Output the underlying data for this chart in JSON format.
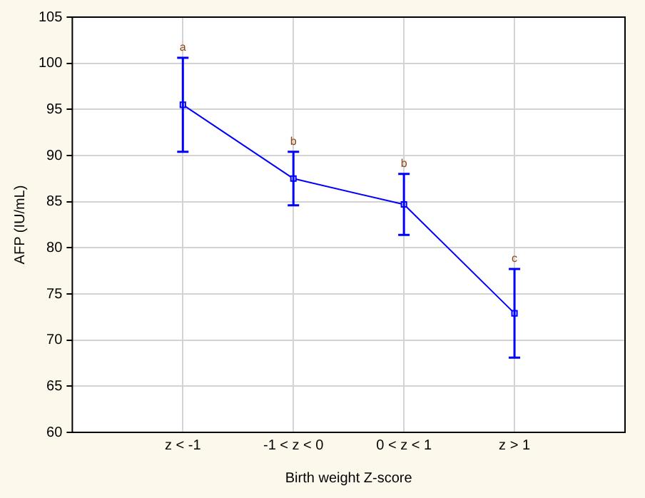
{
  "chart_data": {
    "type": "line",
    "xlabel": "Birth weight Z-score",
    "ylabel": "AFP (IU/mL)",
    "categories": [
      "z < -1",
      "-1 < z < 0",
      "0 < z < 1",
      "z > 1"
    ],
    "series": [
      {
        "color": "#0000ff",
        "values": [
          95.5,
          87.5,
          84.7,
          72.9
        ],
        "errors": [
          5.1,
          2.9,
          3.3,
          4.8
        ]
      }
    ],
    "ylim": [
      60,
      105
    ],
    "yticks": [
      60,
      65,
      70,
      75,
      80,
      85,
      90,
      95,
      100,
      105
    ],
    "grid": true,
    "legend": false,
    "marker": "square",
    "line_style": "solid",
    "annotations": [
      {
        "text": "a",
        "x": "z < -1",
        "y": 100.6
      },
      {
        "text": "b",
        "x": "-1 < z < 0",
        "y": 90.4
      },
      {
        "text": "b",
        "x": "0 < z < 1",
        "y": 88
      },
      {
        "text": "c",
        "x": "z > 1",
        "y": 77.7
      }
    ]
  }
}
